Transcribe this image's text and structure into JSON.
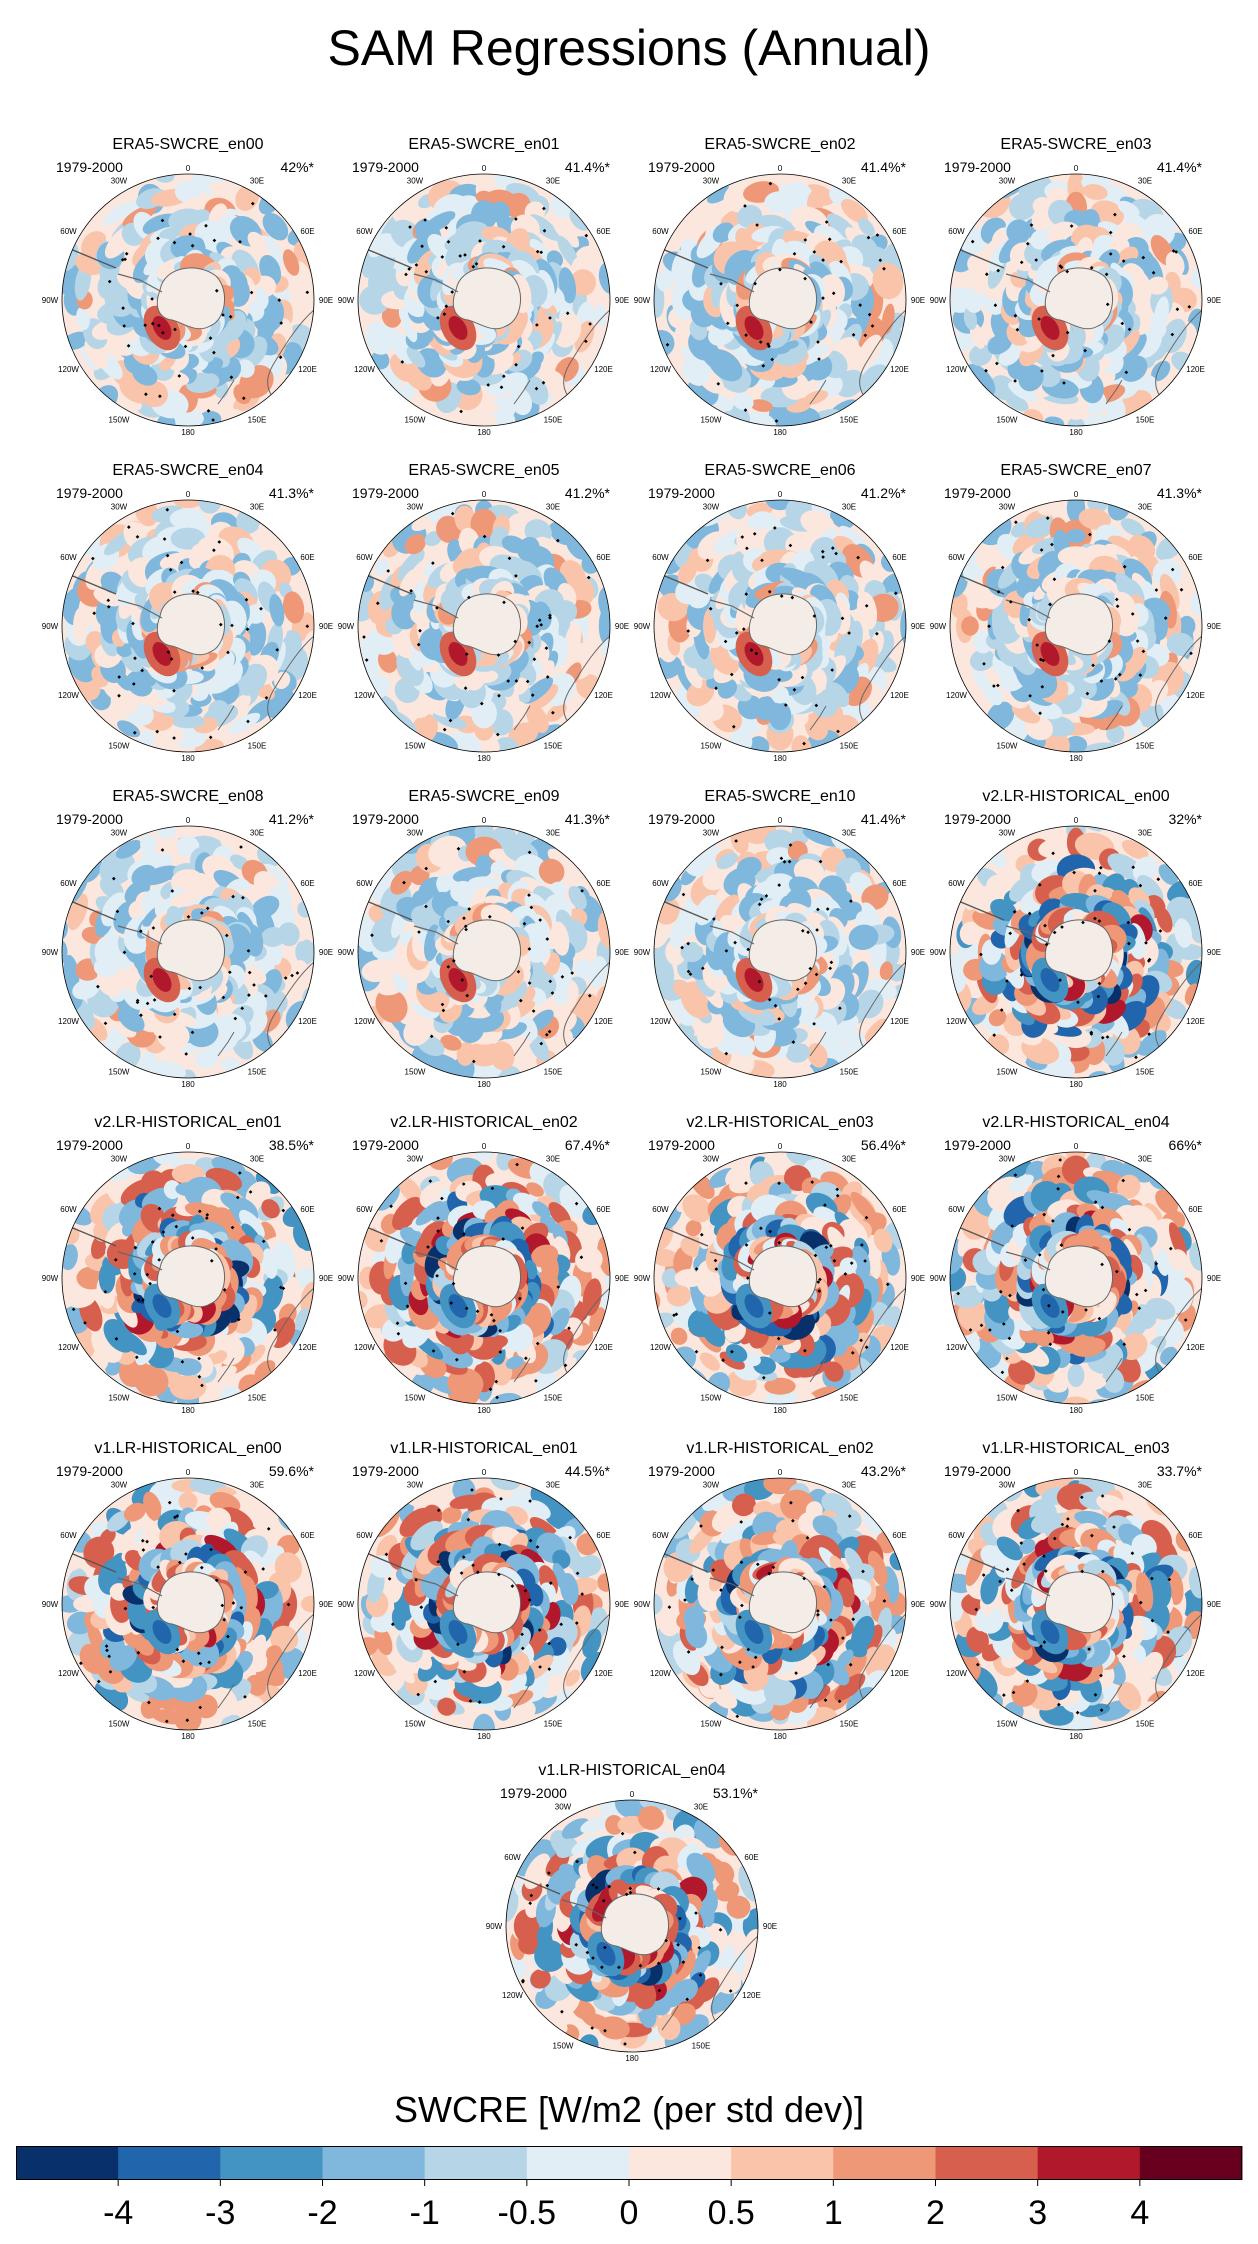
{
  "figure": {
    "title": "SAM Regressions (Annual)"
  },
  "chart_data": {
    "type": "heatmap",
    "projection": "south polar stereographic",
    "variable": "SWCRE",
    "longitude_labels": [
      "0",
      "30E",
      "60E",
      "90E",
      "120E",
      "150E",
      "180",
      "150W",
      "120W",
      "90W",
      "60W",
      "30W"
    ],
    "panels": [
      {
        "title": "ERA5-SWCRE_en00",
        "period": "1979-2000",
        "pct": "42%*",
        "pattern": "era5"
      },
      {
        "title": "ERA5-SWCRE_en01",
        "period": "1979-2000",
        "pct": "41.4%*",
        "pattern": "era5"
      },
      {
        "title": "ERA5-SWCRE_en02",
        "period": "1979-2000",
        "pct": "41.4%*",
        "pattern": "era5"
      },
      {
        "title": "ERA5-SWCRE_en03",
        "period": "1979-2000",
        "pct": "41.4%*",
        "pattern": "era5"
      },
      {
        "title": "ERA5-SWCRE_en04",
        "period": "1979-2000",
        "pct": "41.3%*",
        "pattern": "era5"
      },
      {
        "title": "ERA5-SWCRE_en05",
        "period": "1979-2000",
        "pct": "41.2%*",
        "pattern": "era5"
      },
      {
        "title": "ERA5-SWCRE_en06",
        "period": "1979-2000",
        "pct": "41.2%*",
        "pattern": "era5"
      },
      {
        "title": "ERA5-SWCRE_en07",
        "period": "1979-2000",
        "pct": "41.3%*",
        "pattern": "era5"
      },
      {
        "title": "ERA5-SWCRE_en08",
        "period": "1979-2000",
        "pct": "41.2%*",
        "pattern": "era5"
      },
      {
        "title": "ERA5-SWCRE_en09",
        "period": "1979-2000",
        "pct": "41.3%*",
        "pattern": "era5"
      },
      {
        "title": "ERA5-SWCRE_en10",
        "period": "1979-2000",
        "pct": "41.4%*",
        "pattern": "era5"
      },
      {
        "title": "v2.LR-HISTORICAL_en00",
        "period": "1979-2000",
        "pct": "32%*",
        "pattern": "model"
      },
      {
        "title": "v2.LR-HISTORICAL_en01",
        "period": "1979-2000",
        "pct": "38.5%*",
        "pattern": "model"
      },
      {
        "title": "v2.LR-HISTORICAL_en02",
        "period": "1979-2000",
        "pct": "67.4%*",
        "pattern": "model"
      },
      {
        "title": "v2.LR-HISTORICAL_en03",
        "period": "1979-2000",
        "pct": "56.4%*",
        "pattern": "model"
      },
      {
        "title": "v2.LR-HISTORICAL_en04",
        "period": "1979-2000",
        "pct": "66%*",
        "pattern": "model"
      },
      {
        "title": "v1.LR-HISTORICAL_en00",
        "period": "1979-2000",
        "pct": "59.6%*",
        "pattern": "model"
      },
      {
        "title": "v1.LR-HISTORICAL_en01",
        "period": "1979-2000",
        "pct": "44.5%*",
        "pattern": "model"
      },
      {
        "title": "v1.LR-HISTORICAL_en02",
        "period": "1979-2000",
        "pct": "43.2%*",
        "pattern": "model"
      },
      {
        "title": "v1.LR-HISTORICAL_en03",
        "period": "1979-2000",
        "pct": "33.7%*",
        "pattern": "model"
      },
      {
        "title": "v1.LR-HISTORICAL_en04",
        "period": "1979-2000",
        "pct": "53.1%*",
        "pattern": "model"
      }
    ],
    "colorbar": {
      "title": "SWCRE [W/m2 (per std dev)]",
      "levels": [
        "-4",
        "-3",
        "-2",
        "-1",
        "-0.5",
        "0",
        "0.5",
        "1",
        "2",
        "3",
        "4"
      ],
      "colors": [
        "#08306b",
        "#2166ac",
        "#4393c3",
        "#7fb8dc",
        "#b6d6e8",
        "#e2eef5",
        "#fbe7dd",
        "#f9c4a9",
        "#ee9877",
        "#d6604d",
        "#b2182b",
        "#67001f"
      ]
    }
  }
}
